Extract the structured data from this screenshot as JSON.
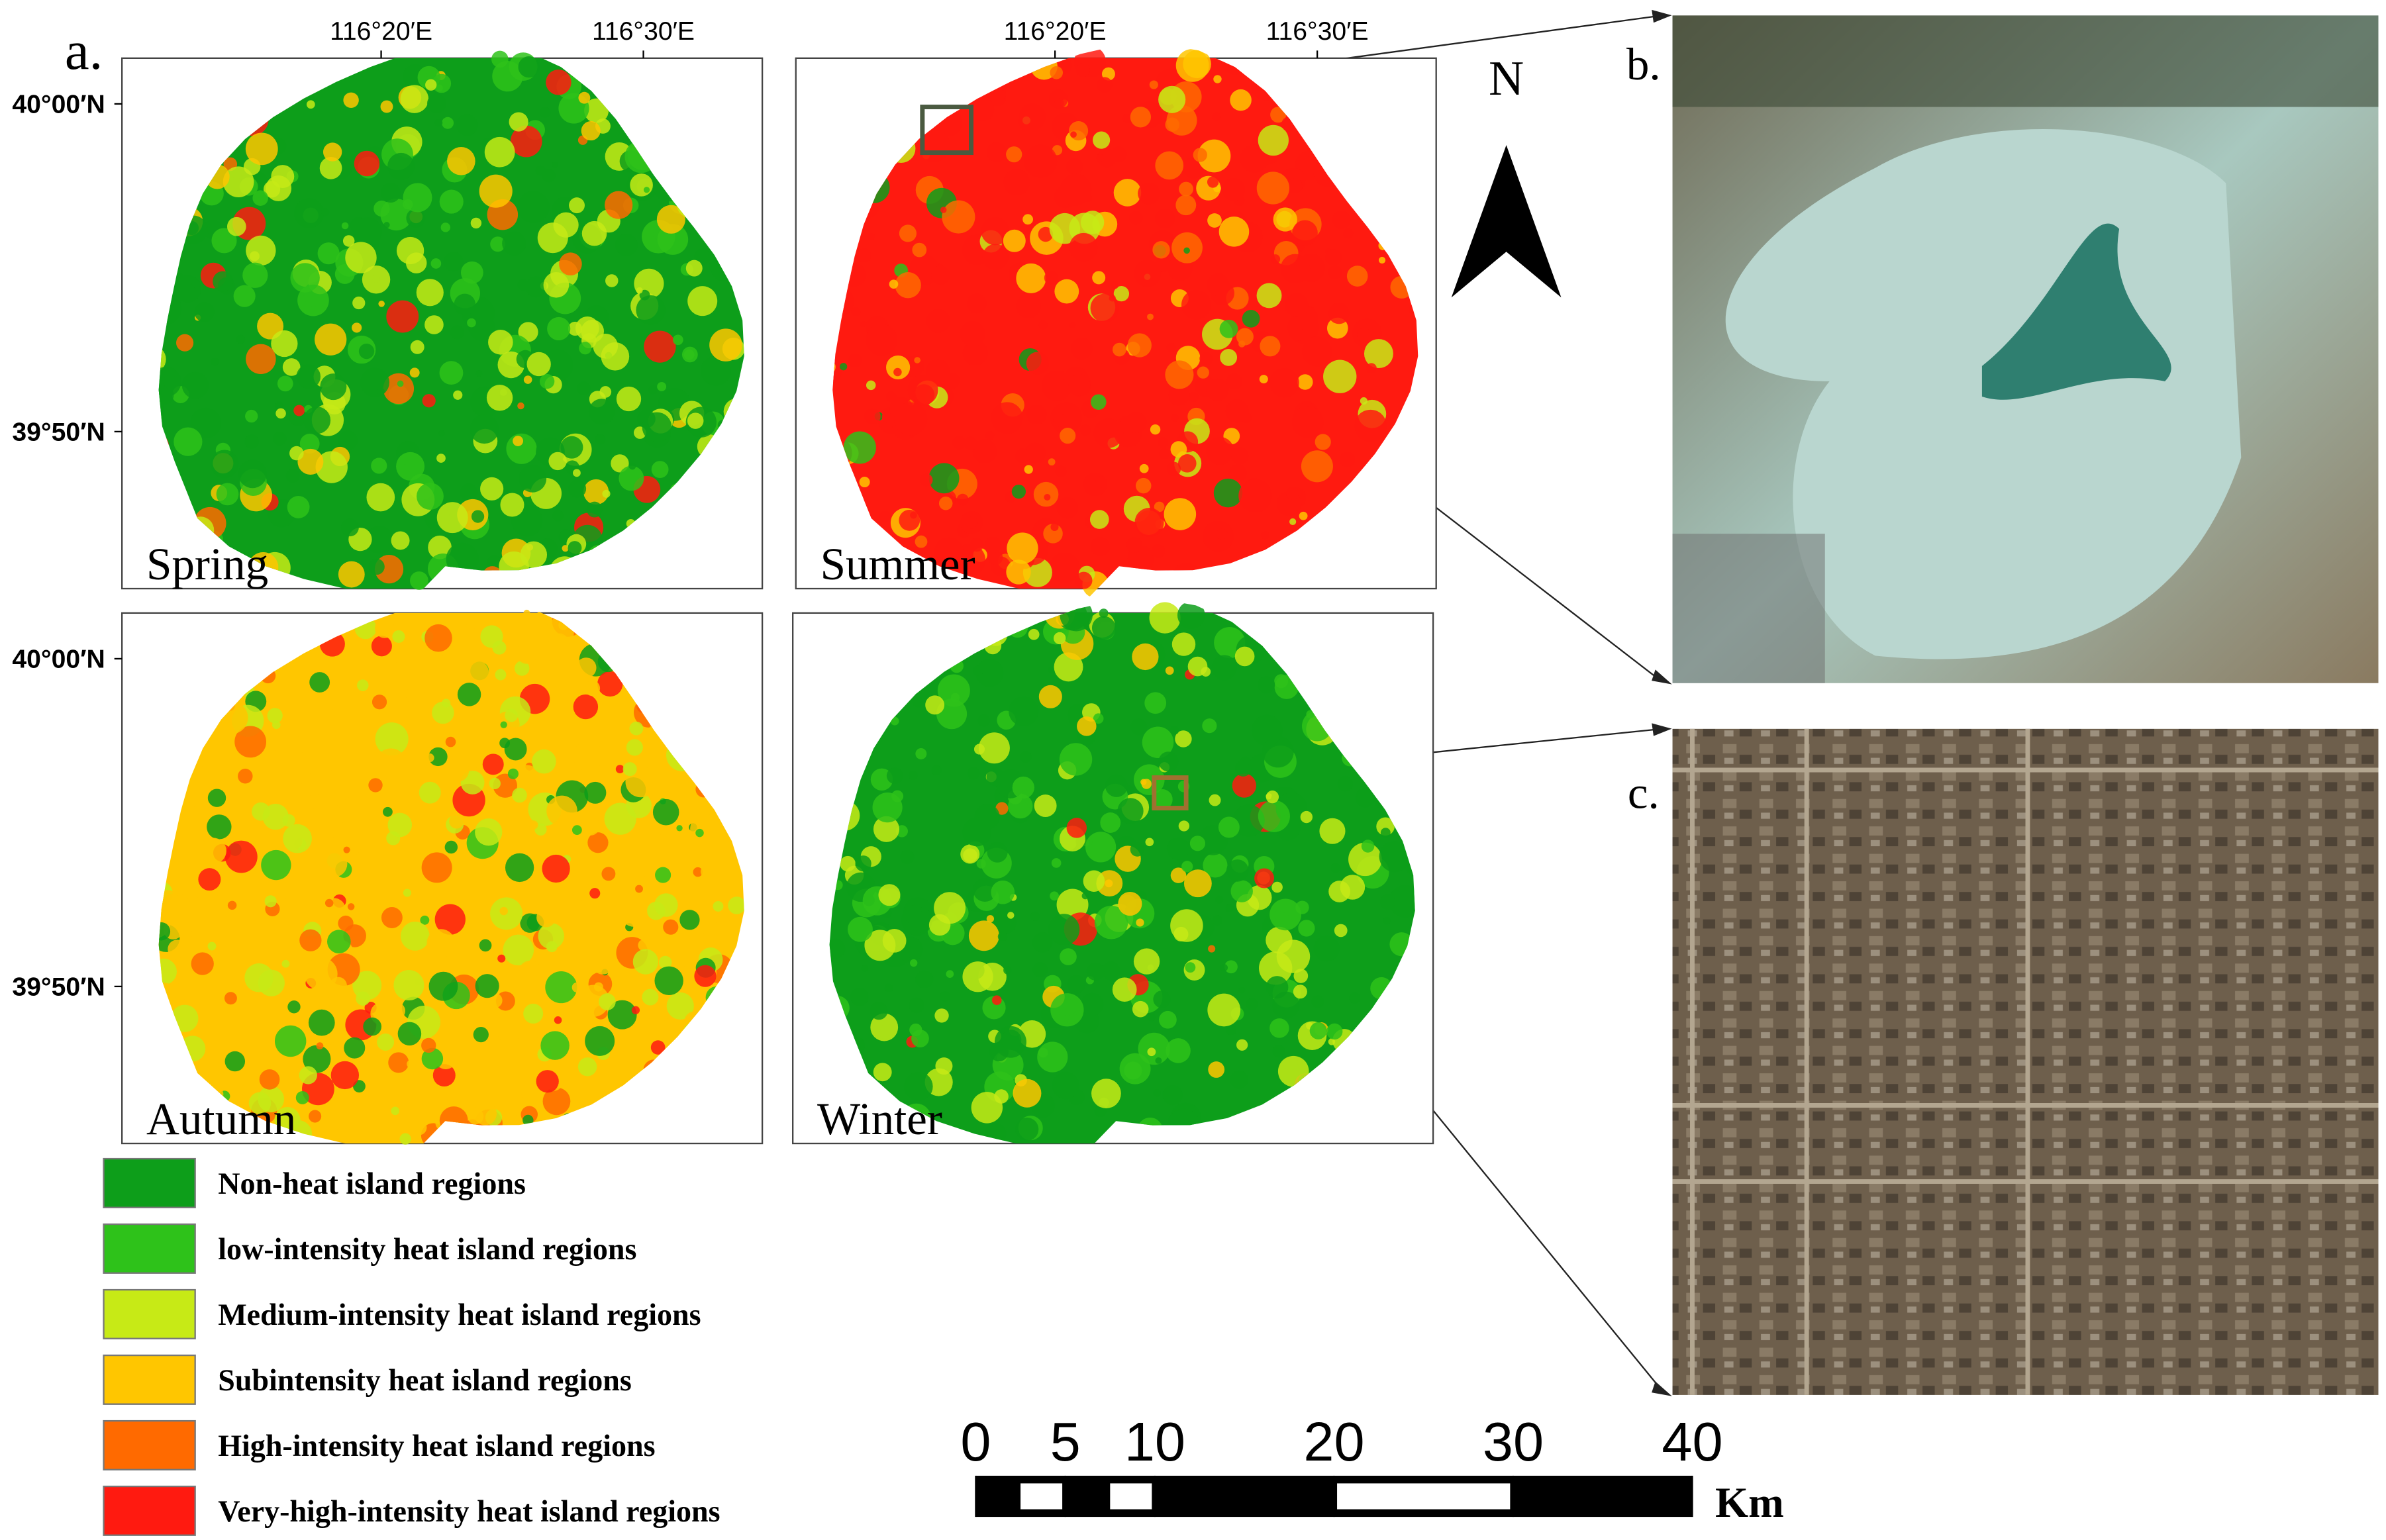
{
  "panel_labels": [
    "a.",
    "b.",
    "c."
  ],
  "longitude_labels": [
    "116°20′E",
    "116°30′E"
  ],
  "latitude_labels": [
    "40°00′N",
    "39°50′N"
  ],
  "maps": [
    {
      "season": "Spring"
    },
    {
      "season": "Summer"
    },
    {
      "season": "Autumn"
    },
    {
      "season": "Winter"
    }
  ],
  "north_label": "N",
  "legend": [
    {
      "label": "Non-heat island regions",
      "color": "#0d9e1a"
    },
    {
      "label": "low-intensity heat island regions",
      "color": "#2ec21a"
    },
    {
      "label": "Medium-intensity heat island regions",
      "color": "#c7ea16"
    },
    {
      "label": "Subintensity heat island regions",
      "color": "#ffc600"
    },
    {
      "label": "High-intensity heat island regions",
      "color": "#ff6a00"
    },
    {
      "label": "Very-high-intensity heat island regions",
      "color": "#ff1a10"
    }
  ],
  "scale_bar": {
    "ticks": [
      0,
      5,
      10,
      20,
      30,
      40
    ],
    "unit": "Km"
  }
}
